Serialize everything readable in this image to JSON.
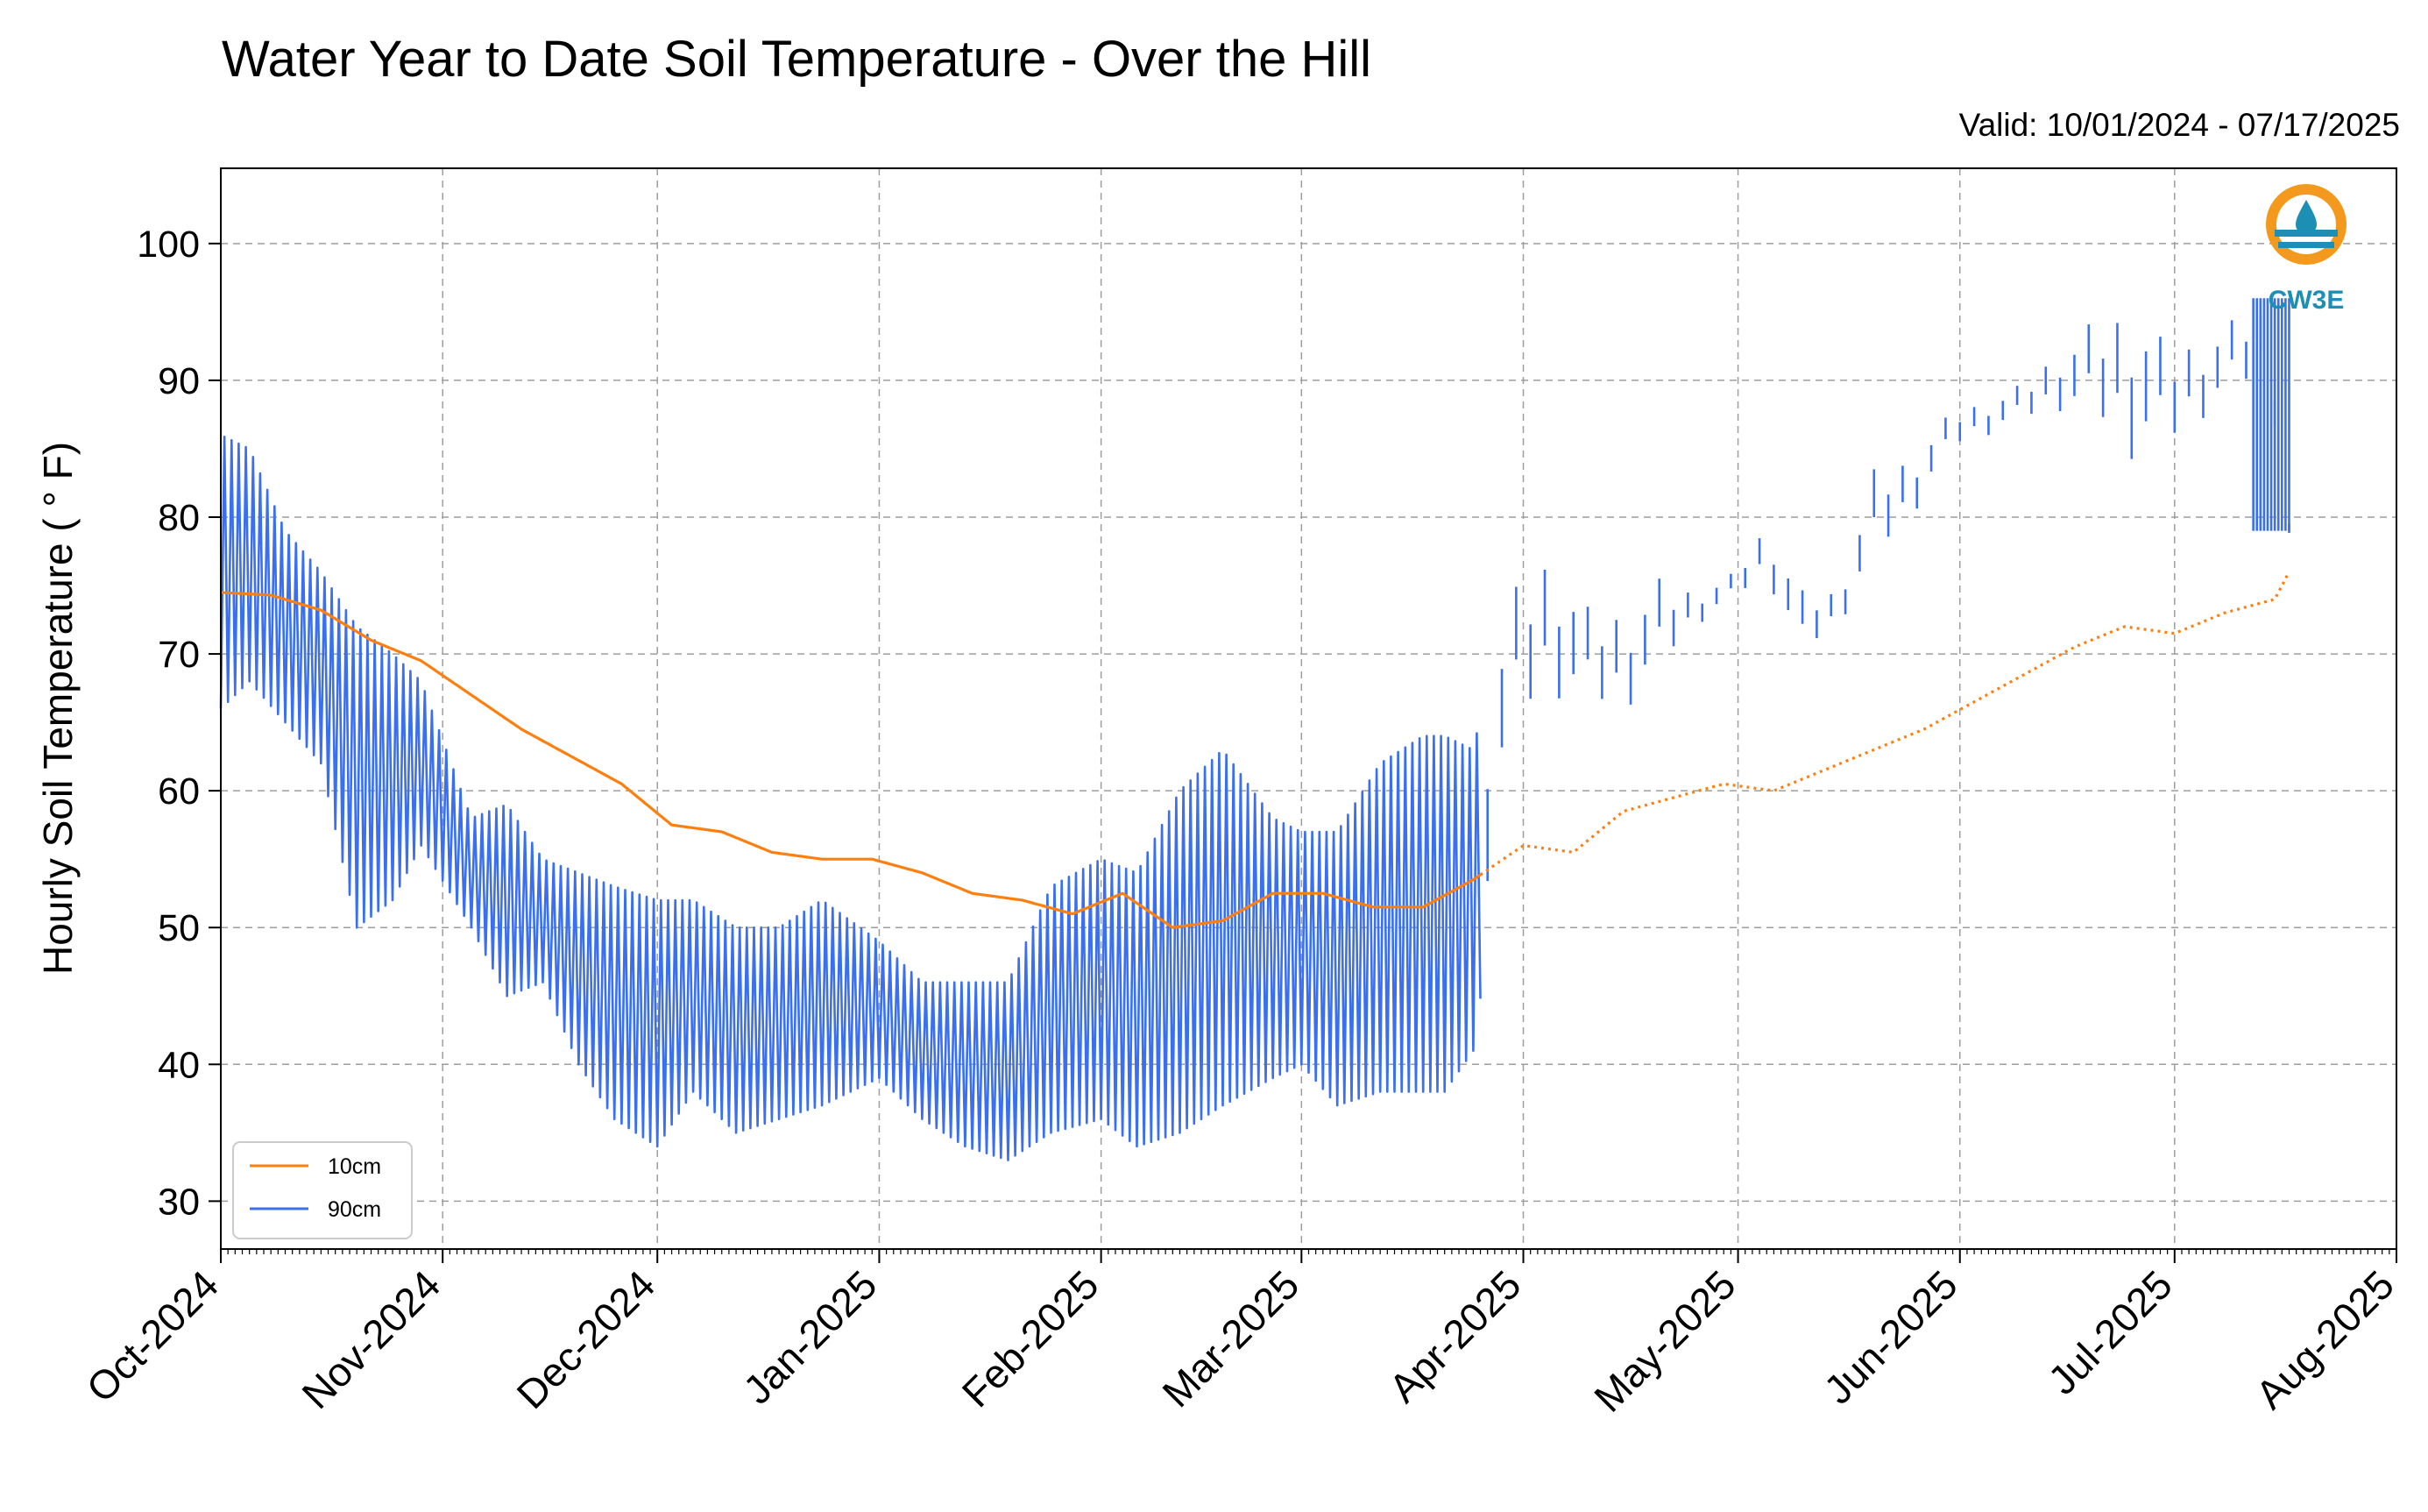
{
  "chart_data": {
    "type": "line",
    "title": "Water Year to Date Soil Temperature - Over the Hill",
    "subtitle": "Valid: 10/01/2024 - 07/17/2025",
    "xlabel": "",
    "ylabel": "Hourly Soil Temperature ($^\\circ$F)",
    "ylabel_display": "Hourly Soil Temperature ( ° F)",
    "xlim": [
      "2024-10-01",
      "2025-08-01"
    ],
    "ylim": [
      26.5,
      105.5
    ],
    "yticks": [
      30,
      40,
      50,
      60,
      70,
      80,
      90,
      100
    ],
    "ytick_labels": [
      "30",
      "40",
      "50",
      "60",
      "70",
      "80",
      "90",
      "100"
    ],
    "xticks": [
      "2024-10-01",
      "2024-11-01",
      "2024-12-01",
      "2025-01-01",
      "2025-02-01",
      "2025-03-01",
      "2025-04-01",
      "2025-05-01",
      "2025-06-01",
      "2025-07-01",
      "2025-08-01"
    ],
    "xtick_labels": [
      "Oct-2024",
      "Nov-2024",
      "Dec-2024",
      "Jan-2025",
      "Feb-2025",
      "Mar-2025",
      "Apr-2025",
      "May-2025",
      "Jun-2025",
      "Jul-2025",
      "Aug-2025"
    ],
    "grid": true,
    "legend_position": "lower-left",
    "logo_text": "CW3E",
    "colors": {
      "10cm": "#ff7f0e",
      "90cm": "#3a6ff0",
      "logo_orange": "#f39a1e",
      "logo_teal": "#1e8fb4"
    },
    "series": [
      {
        "name": "10cm",
        "color": "#ff7f0e",
        "x": [
          "2024-10-01",
          "2024-10-08",
          "2024-10-15",
          "2024-10-22",
          "2024-10-29",
          "2024-11-05",
          "2024-11-12",
          "2024-11-19",
          "2024-11-26",
          "2024-12-03",
          "2024-12-10",
          "2024-12-17",
          "2024-12-24",
          "2024-12-31",
          "2025-01-07",
          "2025-01-14",
          "2025-01-21",
          "2025-01-28",
          "2025-02-04",
          "2025-02-11",
          "2025-02-18",
          "2025-02-25",
          "2025-03-04",
          "2025-03-11",
          "2025-03-18",
          "2025-03-25",
          "2025-04-01",
          "2025-04-08",
          "2025-04-15",
          "2025-04-22",
          "2025-04-29",
          "2025-05-06",
          "2025-05-13",
          "2025-05-20",
          "2025-05-27",
          "2025-06-03",
          "2025-06-10",
          "2025-06-17",
          "2025-06-24",
          "2025-07-01",
          "2025-07-08",
          "2025-07-15",
          "2025-07-17"
        ],
        "values": [
          74.5,
          74.3,
          73.2,
          71.0,
          69.5,
          67.0,
          64.5,
          62.5,
          60.5,
          57.5,
          57.0,
          55.5,
          55.0,
          55.0,
          54.0,
          52.5,
          52.0,
          51.0,
          52.5,
          50.0,
          50.5,
          52.5,
          52.5,
          51.5,
          51.5,
          53.5,
          56.0,
          55.5,
          58.5,
          59.5,
          60.5,
          60.0,
          61.5,
          63.0,
          64.5,
          66.5,
          68.5,
          70.5,
          72.0,
          71.5,
          73.0,
          74.0,
          76.0
        ]
      },
      {
        "name": "90cm",
        "color": "#3a6ff0",
        "x": [
          "2024-10-01",
          "2024-10-05",
          "2024-10-10",
          "2024-10-15",
          "2024-10-20",
          "2024-10-25",
          "2024-10-29",
          "2024-11-05",
          "2024-11-10",
          "2024-11-15",
          "2024-11-20",
          "2024-11-25",
          "2024-12-01",
          "2024-12-06",
          "2024-12-12",
          "2024-12-18",
          "2024-12-24",
          "2025-01-01",
          "2025-01-07",
          "2025-01-13",
          "2025-01-19",
          "2025-01-25",
          "2025-02-01",
          "2025-02-06",
          "2025-02-12",
          "2025-02-18",
          "2025-02-25",
          "2025-03-01",
          "2025-03-06",
          "2025-03-12",
          "2025-03-18",
          "2025-03-21",
          "2025-03-25",
          "2025-03-30",
          "2025-04-05",
          "2025-04-10",
          "2025-04-15",
          "2025-04-20",
          "2025-04-25",
          "2025-04-30",
          "2025-05-05",
          "2025-05-10",
          "2025-05-15",
          "2025-05-20",
          "2025-05-25",
          "2025-05-31",
          "2025-06-05",
          "2025-06-10",
          "2025-06-15",
          "2025-06-20",
          "2025-06-25",
          "2025-06-30",
          "2025-07-05",
          "2025-07-10",
          "2025-07-14",
          "2025-07-17"
        ],
        "min": [
          66,
          68,
          65,
          62,
          50,
          52,
          56,
          50,
          45,
          46,
          40,
          36,
          34,
          38,
          35,
          36,
          37,
          39,
          36,
          34,
          33,
          35,
          36,
          34,
          35,
          37,
          39,
          40,
          37,
          38,
          38,
          38,
          41,
          60,
          63,
          63,
          63,
          66,
          71,
          73,
          74,
          68,
          71,
          74,
          78,
          84,
          85,
          86,
          86,
          84,
          80,
          82,
          85,
          87,
          89,
          78
        ],
        "max": [
          86,
          85,
          79,
          76,
          72,
          70,
          68,
          58,
          59,
          55,
          54,
          53,
          52,
          52,
          50,
          50,
          52,
          49,
          46,
          46,
          46,
          53,
          55,
          54,
          60,
          63,
          58,
          57,
          57,
          62,
          64,
          64,
          63,
          75,
          79,
          74,
          74,
          76,
          75,
          76,
          80,
          75,
          75,
          84,
          85,
          88,
          89,
          90,
          93,
          95,
          97,
          93,
          94,
          95,
          96,
          80
        ]
      }
    ]
  }
}
